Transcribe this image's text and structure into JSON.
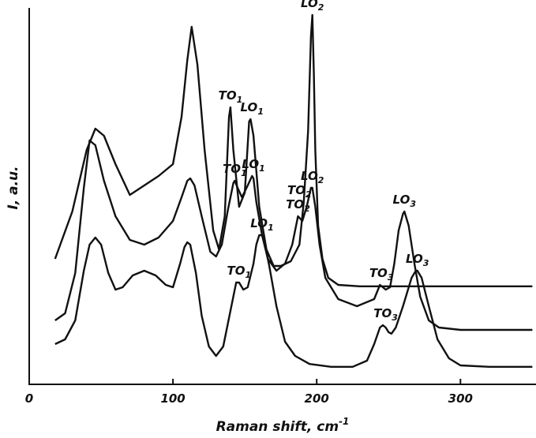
{
  "chart_data": {
    "type": "line",
    "xlabel": "Raman shift, cm",
    "xlabel_sup": "-1",
    "ylabel": "I, a.u.",
    "xlim": [
      0,
      350
    ],
    "x_ticks": [
      0,
      100,
      200,
      300
    ],
    "x_tick_labels": [
      "0",
      "100",
      "200",
      "300"
    ],
    "grid": false,
    "series": [
      {
        "baseline": 0.7,
        "x": [
          18,
          30,
          40,
          46,
          52,
          60,
          70,
          80,
          90,
          100,
          106,
          110,
          113,
          117,
          122,
          128,
          132,
          136,
          139,
          140,
          142,
          146,
          150,
          153,
          154,
          156,
          160,
          165,
          170,
          175,
          182,
          188,
          191,
          194,
          196,
          197,
          198,
          199,
          201,
          204,
          208,
          215,
          230,
          260,
          300,
          350
        ],
        "y": [
          2.3,
          3.3,
          4.6,
          5.05,
          4.9,
          4.3,
          3.65,
          3.85,
          4.05,
          4.3,
          5.3,
          6.5,
          7.2,
          6.4,
          4.6,
          2.9,
          2.5,
          3.2,
          5.3,
          5.5,
          4.6,
          3.4,
          3.7,
          5.2,
          5.25,
          4.9,
          3.4,
          2.5,
          2.15,
          2.15,
          2.25,
          2.6,
          3.5,
          5.0,
          7.0,
          7.45,
          6.2,
          4.6,
          3.0,
          2.3,
          1.9,
          1.75,
          1.72,
          1.72,
          1.72,
          1.72
        ]
      },
      {
        "baseline": 0.2,
        "x": [
          18,
          25,
          32,
          38,
          42,
          46,
          52,
          60,
          70,
          80,
          90,
          100,
          106,
          110,
          112,
          115,
          120,
          126,
          130,
          134,
          138,
          142,
          143,
          145,
          148,
          152,
          155,
          156,
          158,
          162,
          166,
          172,
          178,
          183,
          187,
          190,
          193,
          196,
          197,
          199,
          202,
          206,
          215,
          228,
          240,
          244,
          248,
          251,
          254,
          257,
          260,
          261,
          264,
          268,
          272,
          278,
          285,
          300,
          350
        ],
        "y": [
          1.0,
          1.15,
          2.0,
          3.8,
          4.8,
          4.7,
          3.95,
          3.2,
          2.7,
          2.6,
          2.75,
          3.1,
          3.6,
          3.95,
          4.0,
          3.85,
          3.2,
          2.45,
          2.35,
          2.6,
          3.3,
          3.9,
          3.95,
          3.8,
          3.6,
          3.85,
          4.05,
          4.0,
          3.5,
          2.8,
          2.3,
          2.05,
          2.2,
          2.6,
          3.2,
          3.1,
          3.4,
          3.8,
          3.8,
          3.4,
          2.6,
          1.9,
          1.45,
          1.3,
          1.45,
          1.75,
          1.65,
          1.7,
          2.2,
          2.9,
          3.25,
          3.3,
          3.0,
          2.2,
          1.5,
          1.0,
          0.85,
          0.8,
          0.8
        ]
      },
      {
        "baseline": 0.0,
        "x": [
          18,
          25,
          32,
          38,
          42,
          46,
          50,
          55,
          60,
          65,
          72,
          80,
          88,
          95,
          100,
          105,
          108,
          110,
          112,
          116,
          120,
          125,
          130,
          135,
          140,
          144,
          146,
          149,
          152,
          156,
          158,
          160,
          162,
          164,
          167,
          172,
          178,
          185,
          195,
          210,
          225,
          235,
          240,
          244,
          246,
          248,
          250,
          252,
          255,
          260,
          266,
          269,
          270,
          273,
          278,
          284,
          292,
          300,
          320,
          350
        ],
        "y": [
          0.5,
          0.6,
          1.0,
          2.05,
          2.6,
          2.75,
          2.6,
          2.0,
          1.65,
          1.7,
          1.95,
          2.05,
          1.95,
          1.75,
          1.7,
          2.2,
          2.55,
          2.65,
          2.6,
          2.0,
          1.1,
          0.45,
          0.25,
          0.45,
          1.2,
          1.8,
          1.8,
          1.65,
          1.7,
          2.2,
          2.6,
          2.8,
          2.8,
          2.6,
          2.15,
          1.3,
          0.55,
          0.25,
          0.08,
          0.02,
          0.02,
          0.15,
          0.5,
          0.85,
          0.9,
          0.85,
          0.75,
          0.72,
          0.85,
          1.3,
          1.9,
          2.05,
          2.05,
          1.9,
          1.3,
          0.6,
          0.2,
          0.05,
          0.02,
          0.02
        ]
      }
    ],
    "annotations": [
      {
        "series": 0,
        "main": "TO",
        "sub": "1",
        "x": 140
      },
      {
        "series": 0,
        "main": "LO",
        "sub": "1",
        "x": 155
      },
      {
        "series": 0,
        "main": "TO",
        "sub": "2",
        "x": 188
      },
      {
        "series": 0,
        "main": "LO",
        "sub": "2",
        "x": 197
      },
      {
        "series": 1,
        "main": "TO",
        "sub": "1",
        "x": 143
      },
      {
        "series": 1,
        "main": "LO",
        "sub": "1",
        "x": 156
      },
      {
        "series": 1,
        "main": "TO",
        "sub": "2",
        "x": 187
      },
      {
        "series": 1,
        "main": "LO",
        "sub": "2",
        "x": 197
      },
      {
        "series": 1,
        "main": "TO",
        "sub": "3",
        "x": 245
      },
      {
        "series": 1,
        "main": "LO",
        "sub": "3",
        "x": 261
      },
      {
        "series": 2,
        "main": "TO",
        "sub": "1",
        "x": 146
      },
      {
        "series": 2,
        "main": "LO",
        "sub": "1",
        "x": 162
      },
      {
        "series": 2,
        "main": "TO",
        "sub": "3",
        "x": 248
      },
      {
        "series": 2,
        "main": "LO",
        "sub": "3",
        "x": 270
      }
    ]
  }
}
